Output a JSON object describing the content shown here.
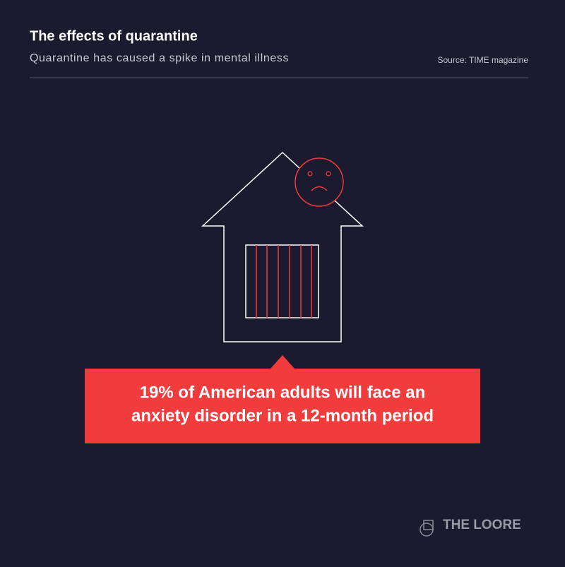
{
  "header": {
    "title": "The effects of quarantine",
    "subtitle": "Quarantine has caused a spike in mental illness",
    "source": "Source: TIME magazine"
  },
  "callout": {
    "lines": [
      "19% of American adults will face an",
      "anxiety disorder in a 12-month period"
    ]
  },
  "logo": {
    "text": "THE LOORE"
  }
}
